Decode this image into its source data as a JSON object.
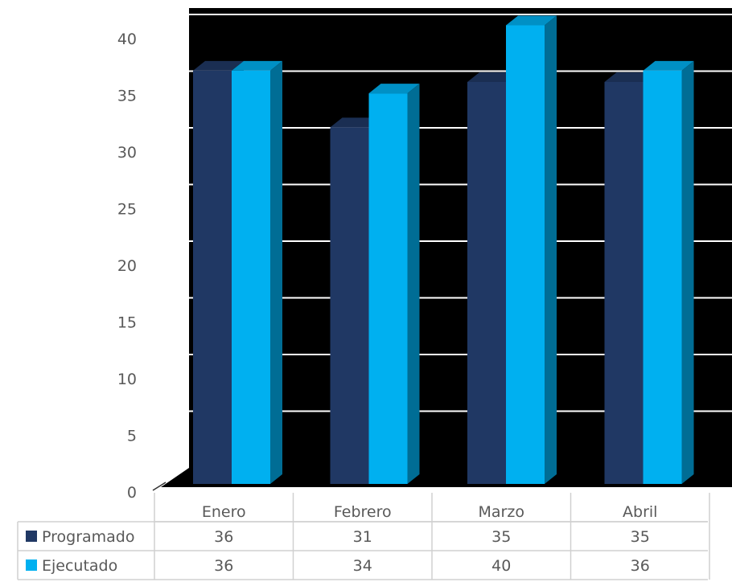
{
  "chart_data": {
    "type": "bar",
    "title": "",
    "xlabel": "",
    "ylabel": "",
    "categories": [
      "Enero",
      "Febrero",
      "Marzo",
      "Abril"
    ],
    "series": [
      {
        "name": "Programado",
        "values": [
          36,
          31,
          35,
          35
        ],
        "color": "#203864"
      },
      {
        "name": "Ejecutado",
        "values": [
          36,
          34,
          40,
          36
        ],
        "color": "#00B0F0"
      }
    ],
    "ylim": [
      0,
      40
    ],
    "yticks": [
      "0",
      "5",
      "10",
      "15",
      "20",
      "25",
      "30",
      "35",
      "40"
    ],
    "grid": true,
    "three_d": true,
    "plot_background": "#000000",
    "gridline_color": "#ffffff",
    "legend_placement": "data-table",
    "data_table": {
      "rows": [
        {
          "label": "Programado",
          "values": [
            "36",
            "31",
            "35",
            "35"
          ]
        },
        {
          "label": "Ejecutado",
          "values": [
            "36",
            "34",
            "40",
            "36"
          ]
        }
      ]
    }
  }
}
